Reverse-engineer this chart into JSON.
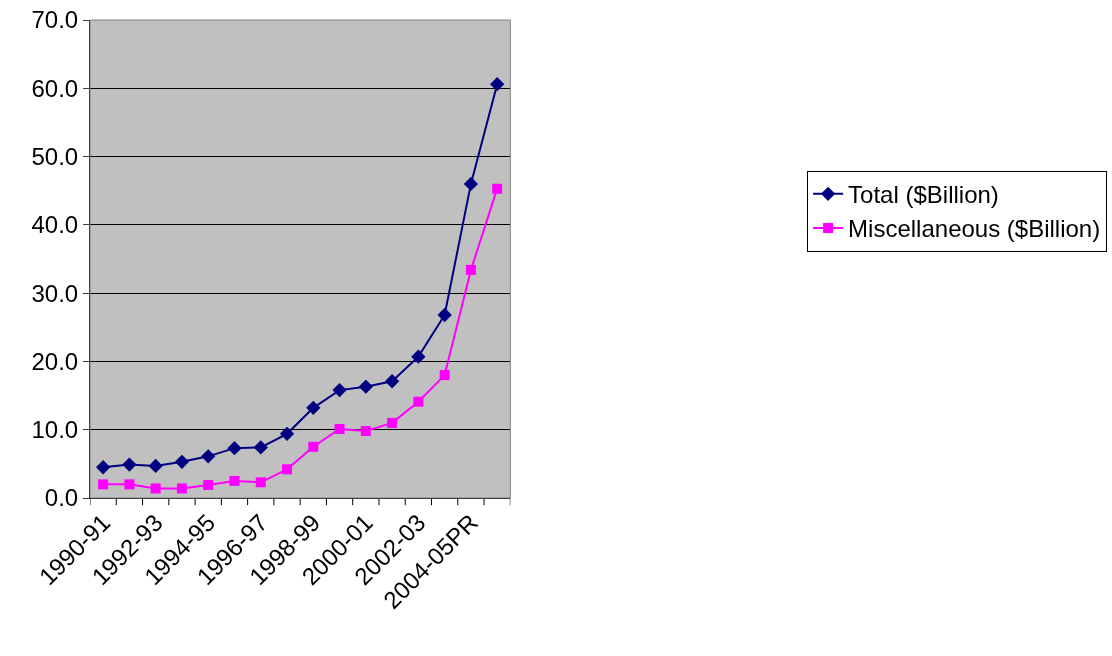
{
  "chart_data": {
    "type": "line",
    "categories": [
      "1990-91",
      null,
      "1992-93",
      null,
      "1994-95",
      null,
      "1996-97",
      null,
      "1998-99",
      null,
      "2000-01",
      null,
      "2002-03",
      null,
      "2004-05PR",
      null
    ],
    "series": [
      {
        "name": "Total ($Billion)",
        "color": "#000080",
        "marker": "diamond",
        "values": [
          4.5,
          4.9,
          4.7,
          5.3,
          6.1,
          7.3,
          7.4,
          9.4,
          13.2,
          15.8,
          16.3,
          17.1,
          20.7,
          26.8,
          46.0,
          60.6
        ]
      },
      {
        "name": "Miscellaneous ($Billion)",
        "color": "#ff00ff",
        "marker": "square",
        "values": [
          2.0,
          2.0,
          1.4,
          1.4,
          1.9,
          2.5,
          2.3,
          4.2,
          7.5,
          10.1,
          9.8,
          11.0,
          14.1,
          18.0,
          33.4,
          45.3
        ]
      }
    ],
    "ylim": [
      0,
      70
    ],
    "yticks": [
      {
        "value": 0,
        "label": "0.0"
      },
      {
        "value": 10,
        "label": "10.0"
      },
      {
        "value": 20,
        "label": "20.0"
      },
      {
        "value": 30,
        "label": "30.0"
      },
      {
        "value": 40,
        "label": "40.0"
      },
      {
        "value": 50,
        "label": "50.0"
      },
      {
        "value": 60,
        "label": "60.0"
      },
      {
        "value": 70,
        "label": "70.0"
      }
    ],
    "grid": "y",
    "legend": "right"
  }
}
